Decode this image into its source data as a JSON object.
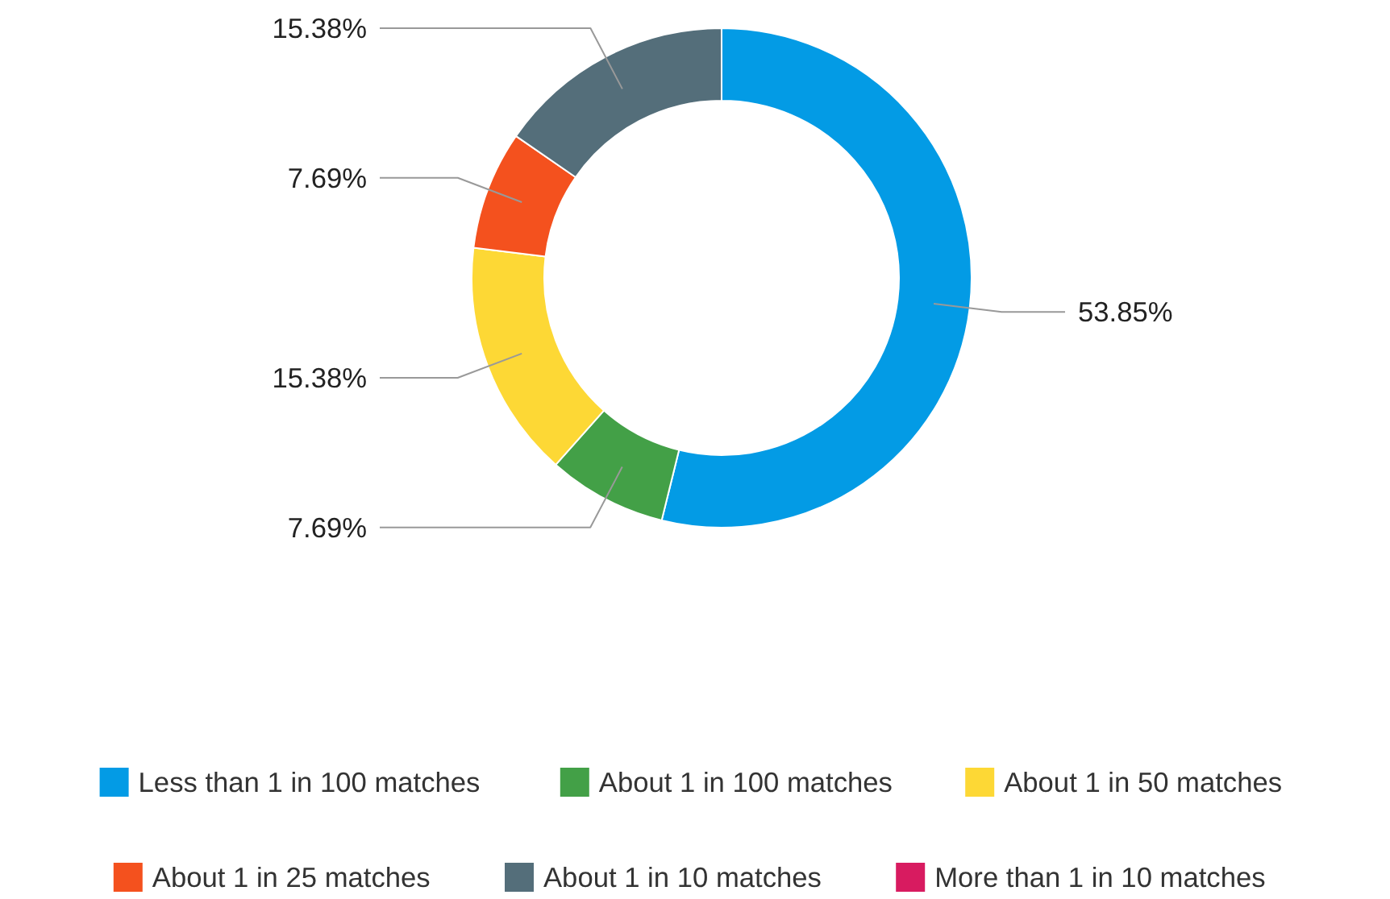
{
  "chart_data": {
    "type": "donut",
    "categories": [
      "Less than 1 in 100 matches",
      "About 1 in 100 matches",
      "About 1 in 50 matches",
      "About 1 in 25 matches",
      "About 1 in 10 matches",
      "More than 1 in 10 matches"
    ],
    "values": [
      53.85,
      7.69,
      15.38,
      7.69,
      15.38,
      0
    ],
    "colors": [
      "#039be5",
      "#43a047",
      "#fdd835",
      "#f4511e",
      "#546e7a",
      "#d81b60"
    ],
    "value_labels": [
      "53.85%",
      "7.69%",
      "15.38%",
      "7.69%",
      "15.38%",
      null
    ],
    "legend": "bottom"
  }
}
